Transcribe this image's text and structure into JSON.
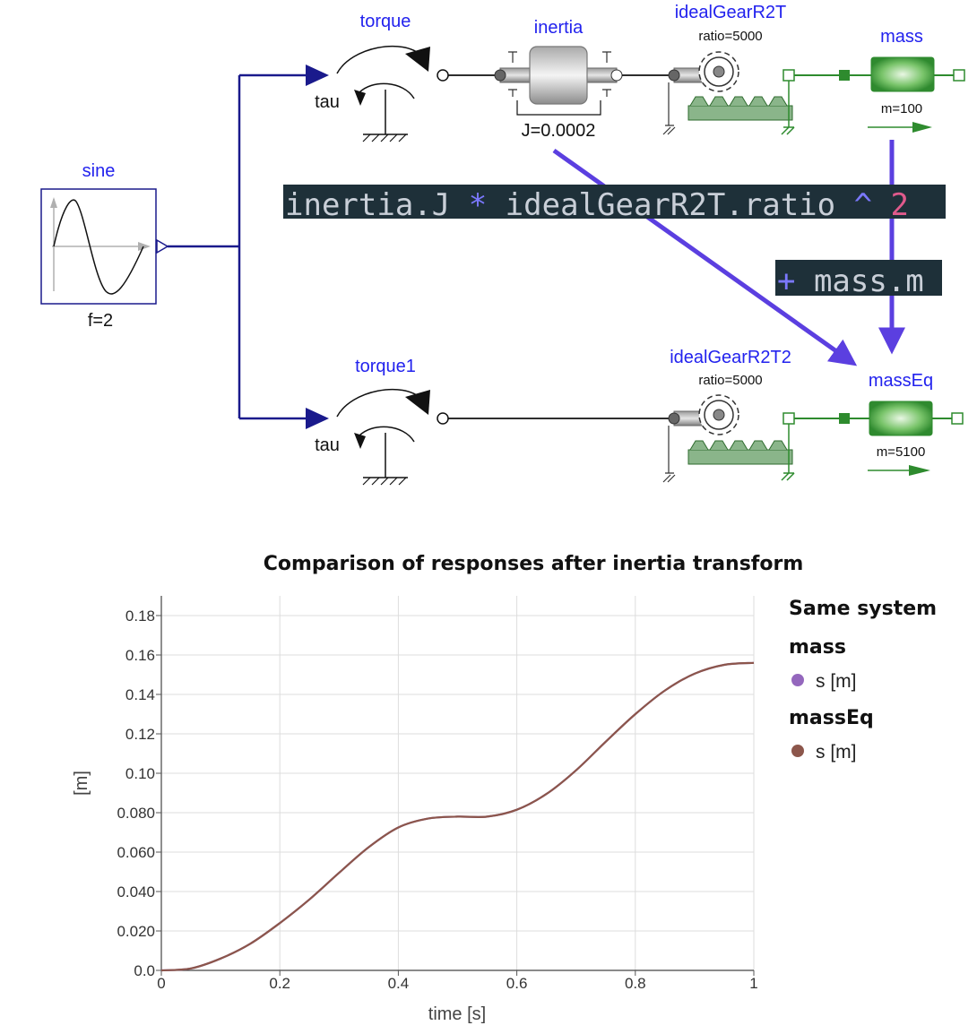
{
  "diagram": {
    "sine": {
      "name": "sine",
      "param": "f=2"
    },
    "torque": {
      "name": "torque",
      "sublabel": "tau"
    },
    "inertia": {
      "name": "inertia",
      "param": "J=0.0002"
    },
    "gear1": {
      "name": "idealGearR2T",
      "param": "ratio=5000"
    },
    "mass": {
      "name": "mass",
      "param": "m=100"
    },
    "torque1": {
      "name": "torque1",
      "sublabel": "tau"
    },
    "gear2": {
      "name": "idealGearR2T2",
      "param": "ratio=5000"
    },
    "massEq": {
      "name": "massEq",
      "param": "m=5100"
    },
    "code": {
      "line1": {
        "a": "inertia.J ",
        "op1": "*",
        "b": " idealGearR2T.ratio ",
        "op2": "^",
        "num": " 2"
      },
      "line2": {
        "op": "+",
        "b": " mass.m"
      }
    },
    "colors": {
      "arrow": "#5b3fe0",
      "wire": "#1a1a8c",
      "flange": "#2e8b2e",
      "code_bg": "#1e3039"
    }
  },
  "chart_data": {
    "type": "line",
    "title": "Comparison of responses after inertia transform",
    "xlabel": "time [s]",
    "ylabel": "[m]",
    "xlim": [
      0,
      1
    ],
    "ylim": [
      0,
      0.19
    ],
    "xticks": [
      "0",
      "0.2",
      "0.4",
      "0.6",
      "0.8",
      "1"
    ],
    "yticks": [
      "0.0",
      "0.020",
      "0.040",
      "0.060",
      "0.080",
      "0.10",
      "0.12",
      "0.14",
      "0.16",
      "0.18"
    ],
    "grid": true,
    "legend_placement": "right",
    "legend_heading": "Same system",
    "series": [
      {
        "group": "mass",
        "name": "s [m]",
        "color": "#9467bd",
        "x": [
          0,
          0.05,
          0.1,
          0.15,
          0.2,
          0.25,
          0.3,
          0.35,
          0.4,
          0.45,
          0.5,
          0.55,
          0.6,
          0.65,
          0.7,
          0.75,
          0.8,
          0.85,
          0.9,
          0.95,
          1
        ],
        "y": [
          0,
          0.001,
          0.006,
          0.0135,
          0.024,
          0.036,
          0.0495,
          0.0625,
          0.0725,
          0.077,
          0.078,
          0.078,
          0.0815,
          0.0895,
          0.1015,
          0.116,
          0.13,
          0.142,
          0.1505,
          0.155,
          0.156
        ]
      },
      {
        "group": "massEq",
        "name": "s [m]",
        "color": "#8c564b",
        "x": [
          0,
          0.05,
          0.1,
          0.15,
          0.2,
          0.25,
          0.3,
          0.35,
          0.4,
          0.45,
          0.5,
          0.55,
          0.6,
          0.65,
          0.7,
          0.75,
          0.8,
          0.85,
          0.9,
          0.95,
          1
        ],
        "y": [
          0,
          0.001,
          0.006,
          0.0135,
          0.024,
          0.036,
          0.0495,
          0.0625,
          0.0725,
          0.077,
          0.078,
          0.078,
          0.0815,
          0.0895,
          0.1015,
          0.116,
          0.13,
          0.142,
          0.1505,
          0.155,
          0.156
        ]
      }
    ]
  }
}
